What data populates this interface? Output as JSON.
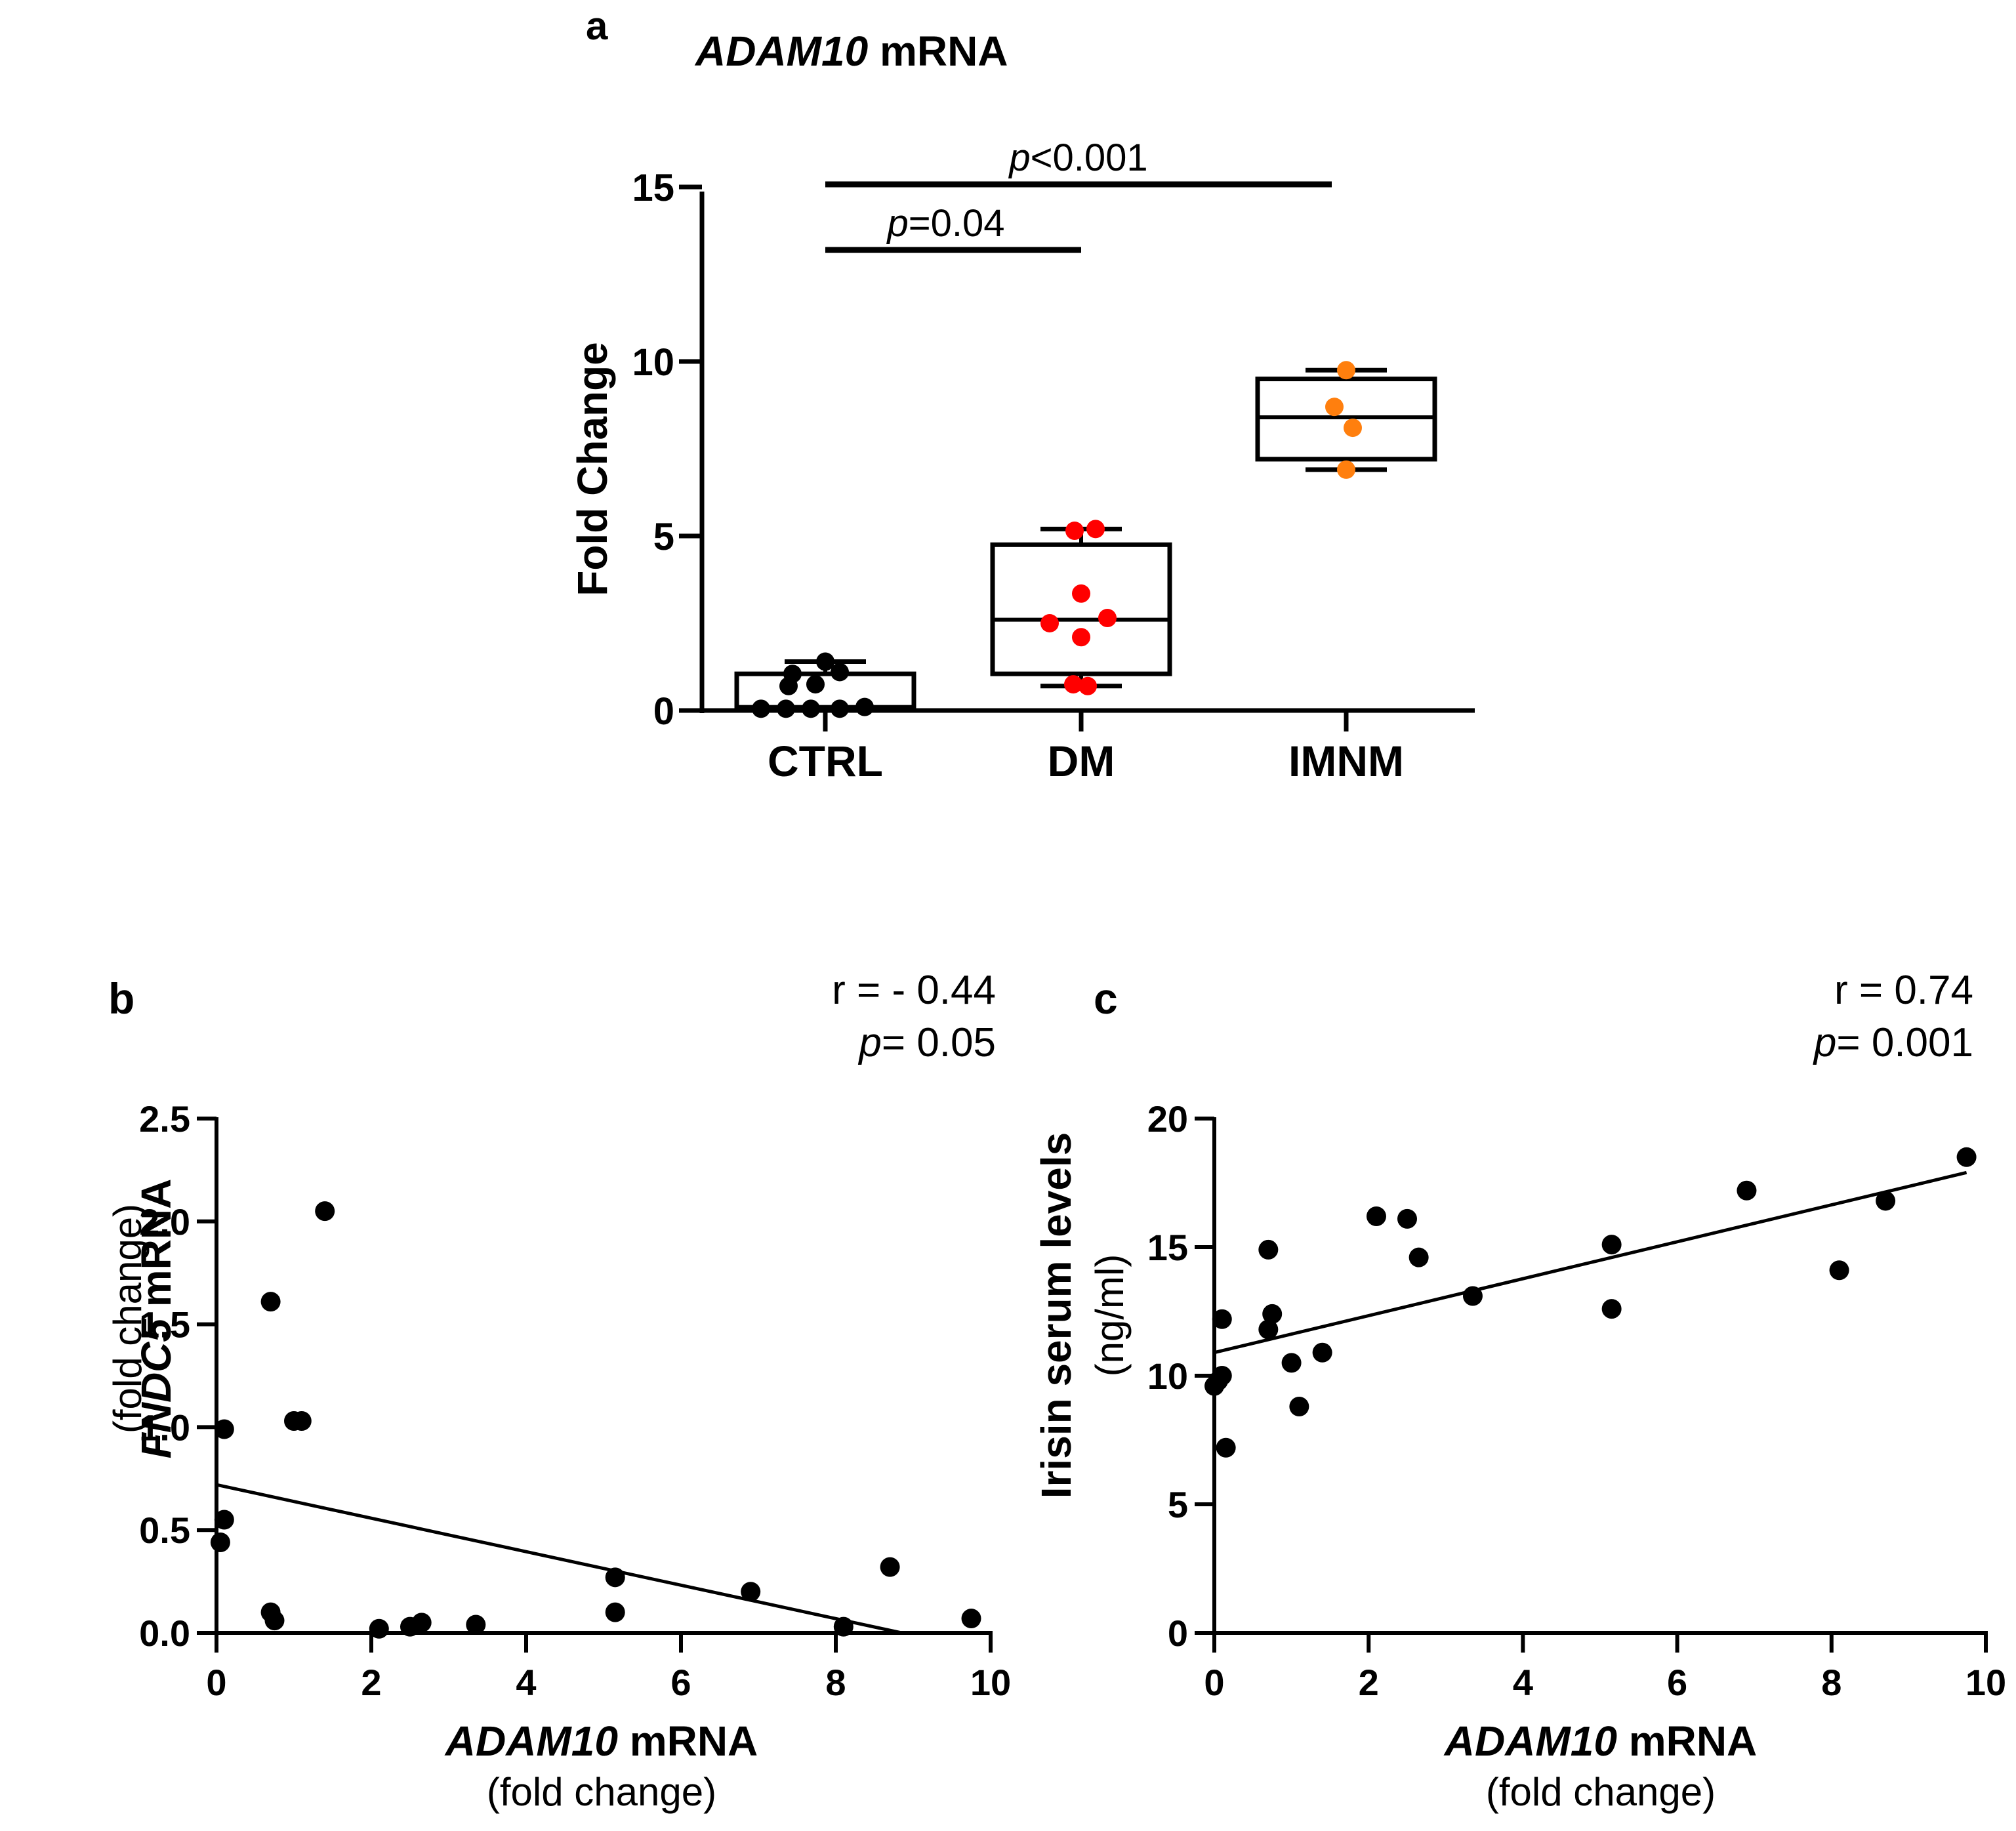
{
  "panels": {
    "a": {
      "letter": "a",
      "title_italic": "ADAM10",
      "title_rest": " mRNA",
      "ylabel": "Fold Change",
      "comparisons": [
        {
          "p_italic": "p",
          "p_rest": "<0.001",
          "from": "CTRL",
          "to": "IMNM"
        },
        {
          "p_italic": "p",
          "p_rest": "=0.04",
          "from": "CTRL",
          "to": "DM"
        }
      ]
    },
    "b": {
      "letter": "b",
      "stat_r": "r = - 0.44",
      "stat_p_italic": "p",
      "stat_p_rest": "= 0.05",
      "ylabel_italic": "FNDC5",
      "ylabel_rest": " mRNA",
      "ylabel_sub": "(fold change)",
      "xlabel_italic": "ADAM10",
      "xlabel_rest": " mRNA",
      "xlabel_sub": "(fold change)"
    },
    "c": {
      "letter": "c",
      "stat_r": "r = 0.74",
      "stat_p_italic": "p",
      "stat_p_rest": "= 0.001",
      "ylabel": "Irisin serum levels",
      "ylabel_sub": "(ng/ml)",
      "xlabel_italic": "ADAM10",
      "xlabel_rest": " mRNA",
      "xlabel_sub": "(fold change)"
    }
  },
  "colors": {
    "ctrl": "#000000",
    "dm": "#ff0000",
    "imnm": "#ff7f0e",
    "axis": "#000000"
  },
  "chart_data": [
    {
      "type": "box",
      "panel": "a",
      "categories": [
        "CTRL",
        "DM",
        "IMNM"
      ],
      "ylim": [
        0,
        15
      ],
      "yticks": [
        0,
        5,
        10,
        15
      ],
      "boxes": [
        {
          "name": "CTRL",
          "min": 0.05,
          "q1": 0.05,
          "median": 0.1,
          "q3": 1.05,
          "max": 1.4
        },
        {
          "name": "DM",
          "min": 0.7,
          "q1": 1.05,
          "median": 2.6,
          "q3": 4.75,
          "max": 5.2
        },
        {
          "name": "IMNM",
          "min": 6.9,
          "q1": 7.2,
          "median": 8.4,
          "q3": 9.5,
          "max": 9.75
        }
      ],
      "points": {
        "CTRL": [
          0.05,
          0.05,
          0.05,
          0.05,
          0.1,
          0.7,
          0.75,
          1.05,
          1.1,
          1.4
        ],
        "DM": [
          0.7,
          0.75,
          2.1,
          2.5,
          2.65,
          3.35,
          5.15,
          5.2
        ],
        "IMNM": [
          6.9,
          8.1,
          8.7,
          9.75
        ]
      }
    },
    {
      "type": "scatter",
      "panel": "b",
      "xlim": [
        0,
        10
      ],
      "ylim": [
        0,
        2.5
      ],
      "xticks": [
        0,
        2,
        4,
        6,
        8,
        10
      ],
      "yticks": [
        "0.0",
        "0.5",
        "1.0",
        "1.5",
        "2.0",
        "2.5"
      ],
      "points": [
        [
          0.05,
          0.44
        ],
        [
          0.1,
          0.55
        ],
        [
          0.1,
          0.99
        ],
        [
          0.7,
          1.61
        ],
        [
          0.7,
          0.1
        ],
        [
          0.75,
          0.06
        ],
        [
          1.0,
          1.03
        ],
        [
          1.1,
          1.03
        ],
        [
          1.4,
          2.05
        ],
        [
          2.1,
          0.02
        ],
        [
          2.5,
          0.03
        ],
        [
          2.65,
          0.05
        ],
        [
          3.35,
          0.04
        ],
        [
          5.15,
          0.27
        ],
        [
          5.15,
          0.1
        ],
        [
          6.9,
          0.2
        ],
        [
          8.1,
          0.03
        ],
        [
          8.7,
          0.32
        ],
        [
          9.75,
          0.07
        ]
      ],
      "fit": {
        "x": [
          0,
          8.85
        ],
        "y": [
          0.72,
          0.0
        ]
      }
    },
    {
      "type": "scatter",
      "panel": "c",
      "xlim": [
        0,
        10
      ],
      "ylim": [
        0,
        20
      ],
      "xticks": [
        0,
        2,
        4,
        6,
        8,
        10
      ],
      "yticks": [
        0,
        5,
        10,
        15,
        20
      ],
      "points": [
        [
          0.0,
          9.6
        ],
        [
          0.05,
          9.8
        ],
        [
          0.1,
          12.2
        ],
        [
          0.1,
          10.0
        ],
        [
          0.15,
          7.2
        ],
        [
          0.7,
          11.8
        ],
        [
          0.7,
          14.9
        ],
        [
          0.75,
          12.4
        ],
        [
          1.0,
          10.5
        ],
        [
          1.1,
          8.8
        ],
        [
          1.4,
          10.9
        ],
        [
          2.1,
          16.2
        ],
        [
          2.5,
          16.1
        ],
        [
          2.65,
          14.6
        ],
        [
          3.35,
          13.1
        ],
        [
          5.15,
          12.6
        ],
        [
          5.15,
          15.1
        ],
        [
          6.9,
          17.2
        ],
        [
          8.1,
          14.1
        ],
        [
          8.7,
          16.8
        ],
        [
          9.75,
          18.5
        ]
      ],
      "fit": {
        "x": [
          0,
          9.75
        ],
        "y": [
          10.9,
          17.9
        ]
      }
    }
  ]
}
